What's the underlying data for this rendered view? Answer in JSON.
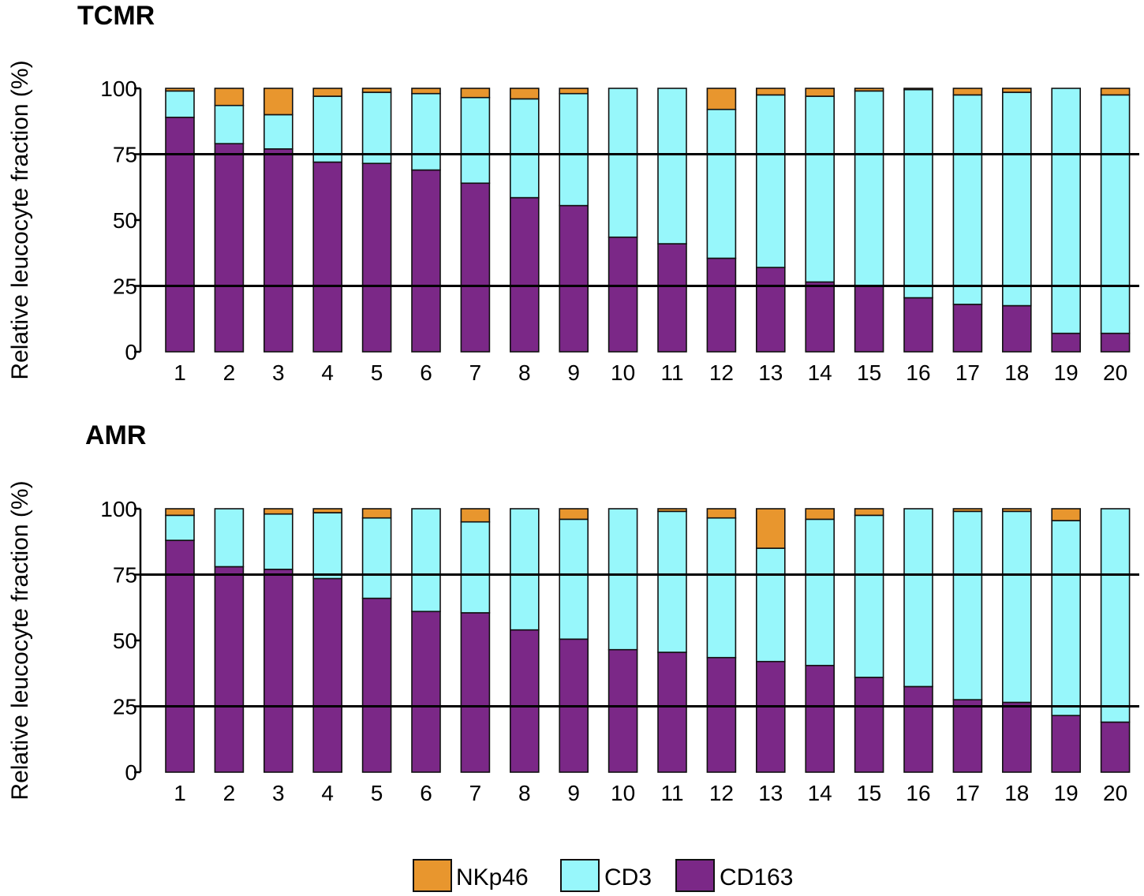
{
  "legend": [
    {
      "key": "NKp46",
      "label": "NKp46",
      "color": "#E8962E"
    },
    {
      "key": "CD3",
      "label": "CD3",
      "color": "#97F7FB"
    },
    {
      "key": "CD163",
      "label": "CD163",
      "color": "#7B2887"
    }
  ],
  "chart_data": [
    {
      "type": "bar",
      "stacked": true,
      "title": "TCMR",
      "xlabel": "",
      "ylabel": "Relative leucocyte fraction (%)",
      "ylim": [
        0,
        100
      ],
      "yticks": [
        0,
        25,
        50,
        75,
        100
      ],
      "reference_lines": [
        25,
        75
      ],
      "categories": [
        "1",
        "2",
        "3",
        "4",
        "5",
        "6",
        "7",
        "8",
        "9",
        "10",
        "11",
        "12",
        "13",
        "14",
        "15",
        "16",
        "17",
        "18",
        "19",
        "20"
      ],
      "series": [
        {
          "name": "CD163",
          "values": [
            89,
            79,
            77,
            72,
            71.5,
            69,
            64,
            58.5,
            55.5,
            43.5,
            41,
            35.5,
            32,
            26.5,
            25,
            20.5,
            18,
            17.5,
            7,
            7
          ]
        },
        {
          "name": "CD3",
          "values": [
            10,
            14.5,
            13,
            25,
            27,
            29,
            32.5,
            37.5,
            42.5,
            56.5,
            59,
            56.5,
            65.5,
            70.5,
            74,
            79,
            79.5,
            81,
            93,
            90.5
          ]
        },
        {
          "name": "NKp46",
          "values": [
            1,
            6.5,
            10,
            3,
            1.5,
            2,
            3.5,
            4,
            2,
            0,
            0,
            8,
            2.5,
            3,
            1,
            0.5,
            2.5,
            1.5,
            0,
            2.5
          ]
        }
      ]
    },
    {
      "type": "bar",
      "stacked": true,
      "title": "AMR",
      "xlabel": "",
      "ylabel": "Relative leucocyte fraction (%)",
      "ylim": [
        0,
        100
      ],
      "yticks": [
        0,
        25,
        50,
        75,
        100
      ],
      "reference_lines": [
        25,
        75
      ],
      "categories": [
        "1",
        "2",
        "3",
        "4",
        "5",
        "6",
        "7",
        "8",
        "9",
        "10",
        "11",
        "12",
        "13",
        "14",
        "15",
        "16",
        "17",
        "18",
        "19",
        "20"
      ],
      "series": [
        {
          "name": "CD163",
          "values": [
            88,
            78,
            77,
            73.5,
            66,
            61,
            60.5,
            54,
            50.5,
            46.5,
            45.5,
            43.5,
            42,
            40.5,
            36,
            32.5,
            27.5,
            26.5,
            21.5,
            19
          ]
        },
        {
          "name": "CD3",
          "values": [
            9.5,
            22,
            21,
            25,
            30.5,
            39,
            34.5,
            46,
            45.5,
            53.5,
            53.5,
            53,
            43,
            55.5,
            61.5,
            67.5,
            71.5,
            72.5,
            74,
            81
          ]
        },
        {
          "name": "NKp46",
          "values": [
            2.5,
            0,
            2,
            1.5,
            3.5,
            0,
            5,
            0,
            4,
            0,
            1,
            3.5,
            15,
            4,
            2.5,
            0,
            1,
            1,
            4.5,
            0
          ]
        }
      ]
    }
  ]
}
